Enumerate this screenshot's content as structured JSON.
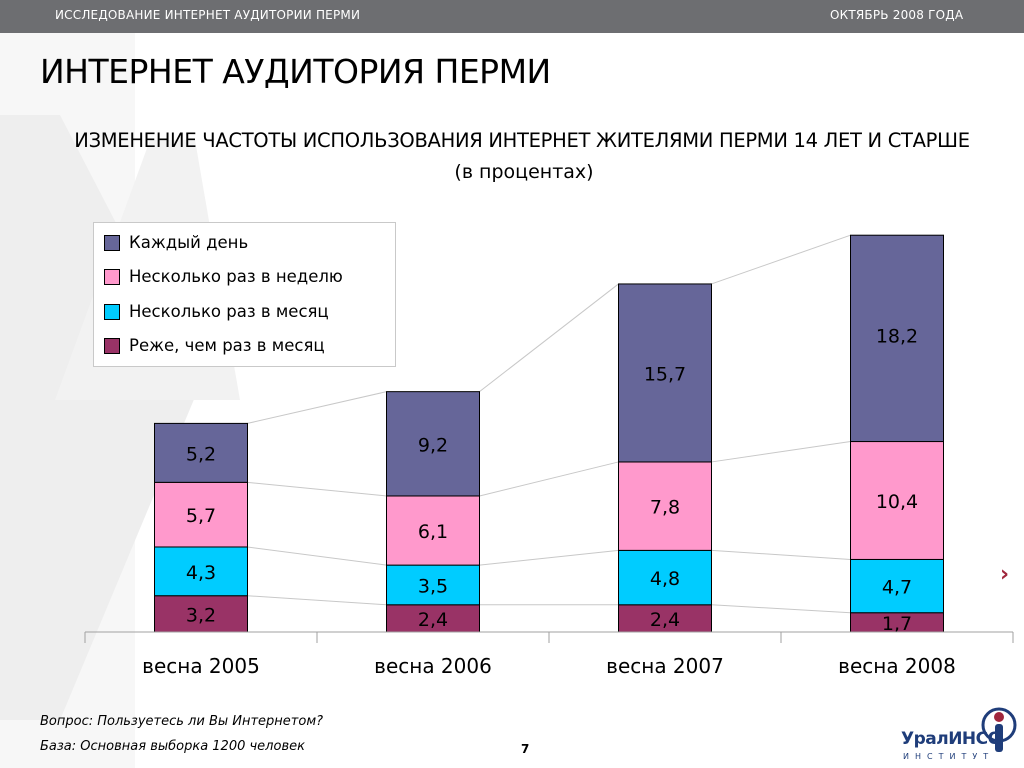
{
  "header": {
    "left": "ИССЛЕДОВАНИЕ ИНТЕРНЕТ АУДИТОРИИ ПЕРМИ",
    "right": "ОКТЯБРЬ 2008 ГОДА"
  },
  "title": "ИНТЕРНЕТ АУДИТОРИЯ ПЕРМИ",
  "chart_data": {
    "type": "bar",
    "stacked": true,
    "title": "ИЗМЕНЕНИЕ ЧАСТОТЫ ИСПОЛЬЗОВАНИЯ ИНТЕРНЕТ ЖИТЕЛЯМИ ПЕРМИ 14 ЛЕТ И СТАРШЕ",
    "subtitle": "(в процентах)",
    "categories": [
      "весна 2005",
      "весна 2006",
      "весна 2007",
      "весна 2008"
    ],
    "series": [
      {
        "name": "Реже, чем раз в месяц",
        "color": "#993366",
        "values": [
          3.2,
          2.4,
          2.4,
          1.7
        ],
        "labels": [
          "3,2",
          "2,4",
          "2,4",
          "1,7"
        ]
      },
      {
        "name": "Несколько раз в месяц",
        "color": "#00ccff",
        "values": [
          4.3,
          3.5,
          4.8,
          4.7
        ],
        "labels": [
          "4,3",
          "3,5",
          "4,8",
          "4,7"
        ]
      },
      {
        "name": "Несколько раз в неделю",
        "color": "#ff99cc",
        "values": [
          5.7,
          6.1,
          7.8,
          10.4
        ],
        "labels": [
          "5,7",
          "6,1",
          "7,8",
          "10,4"
        ]
      },
      {
        "name": "Каждый день",
        "color": "#666699",
        "values": [
          5.2,
          9.2,
          15.7,
          18.2
        ],
        "labels": [
          "5,2",
          "9,2",
          "15,7",
          "18,2"
        ]
      }
    ],
    "legend_order": [
      "Каждый день",
      "Несколько раз в неделю",
      "Несколько раз в месяц",
      "Реже, чем раз в месяц"
    ],
    "legend_position": "top-left",
    "grid": false,
    "series_lines": true,
    "ylim": [
      0,
      34.4
    ]
  },
  "footer": {
    "question": "Вопрос: Пользуетесь ли Вы Интернетом?",
    "base": "База: Основная выборка 1200  человек",
    "page_number": "7",
    "logo_name": "УралИНСО",
    "logo_sub": "ИНСТИТУТ"
  }
}
